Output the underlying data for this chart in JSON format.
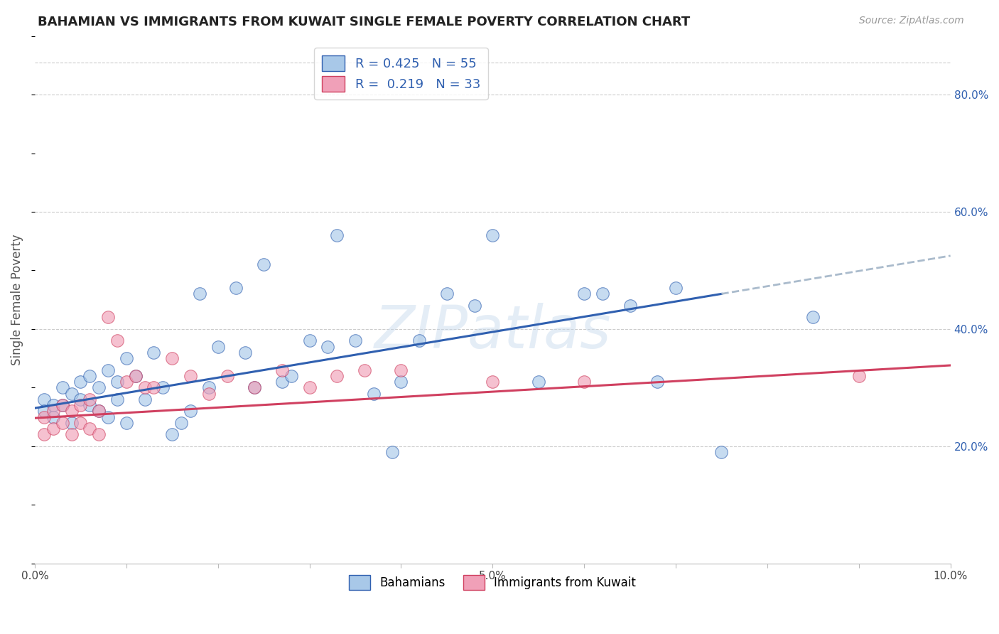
{
  "title": "BAHAMIAN VS IMMIGRANTS FROM KUWAIT SINGLE FEMALE POVERTY CORRELATION CHART",
  "source": "Source: ZipAtlas.com",
  "ylabel": "Single Female Poverty",
  "xlim": [
    0.0,
    0.1
  ],
  "ylim": [
    0.0,
    0.9
  ],
  "xtick_positions": [
    0.0,
    0.01,
    0.02,
    0.03,
    0.04,
    0.05,
    0.06,
    0.07,
    0.08,
    0.09,
    0.1
  ],
  "xtick_labels": [
    "0.0%",
    "",
    "",
    "",
    "",
    "5.0%",
    "",
    "",
    "",
    "",
    "10.0%"
  ],
  "ytick_vals_right": [
    0.2,
    0.4,
    0.6,
    0.8
  ],
  "ytick_labels_right": [
    "20.0%",
    "40.0%",
    "60.0%",
    "80.0%"
  ],
  "color_blue": "#A8C8E8",
  "color_pink": "#F0A0B8",
  "line_blue": "#3060B0",
  "line_pink": "#D04060",
  "line_dashed_color": "#AABBCC",
  "R_blue": 0.425,
  "N_blue": 55,
  "R_pink": 0.219,
  "N_pink": 33,
  "bahamian_x": [
    0.001,
    0.001,
    0.002,
    0.002,
    0.003,
    0.003,
    0.004,
    0.004,
    0.005,
    0.005,
    0.006,
    0.006,
    0.007,
    0.007,
    0.008,
    0.008,
    0.009,
    0.009,
    0.01,
    0.01,
    0.011,
    0.012,
    0.013,
    0.014,
    0.015,
    0.016,
    0.017,
    0.018,
    0.019,
    0.02,
    0.022,
    0.023,
    0.024,
    0.025,
    0.027,
    0.028,
    0.03,
    0.032,
    0.033,
    0.035,
    0.037,
    0.039,
    0.04,
    0.042,
    0.045,
    0.048,
    0.05,
    0.055,
    0.06,
    0.062,
    0.065,
    0.068,
    0.07,
    0.075,
    0.085
  ],
  "bahamian_y": [
    0.28,
    0.26,
    0.27,
    0.25,
    0.3,
    0.27,
    0.29,
    0.24,
    0.31,
    0.28,
    0.32,
    0.27,
    0.3,
    0.26,
    0.33,
    0.25,
    0.31,
    0.28,
    0.35,
    0.24,
    0.32,
    0.28,
    0.36,
    0.3,
    0.22,
    0.24,
    0.26,
    0.46,
    0.3,
    0.37,
    0.47,
    0.36,
    0.3,
    0.51,
    0.31,
    0.32,
    0.38,
    0.37,
    0.56,
    0.38,
    0.29,
    0.19,
    0.31,
    0.38,
    0.46,
    0.44,
    0.56,
    0.31,
    0.46,
    0.46,
    0.44,
    0.31,
    0.47,
    0.19,
    0.42
  ],
  "kuwait_x": [
    0.001,
    0.001,
    0.002,
    0.002,
    0.003,
    0.003,
    0.004,
    0.004,
    0.005,
    0.005,
    0.006,
    0.006,
    0.007,
    0.007,
    0.008,
    0.009,
    0.01,
    0.011,
    0.012,
    0.013,
    0.015,
    0.017,
    0.019,
    0.021,
    0.024,
    0.027,
    0.03,
    0.033,
    0.036,
    0.04,
    0.05,
    0.06,
    0.09
  ],
  "kuwait_y": [
    0.25,
    0.22,
    0.26,
    0.23,
    0.27,
    0.24,
    0.26,
    0.22,
    0.27,
    0.24,
    0.28,
    0.23,
    0.26,
    0.22,
    0.42,
    0.38,
    0.31,
    0.32,
    0.3,
    0.3,
    0.35,
    0.32,
    0.29,
    0.32,
    0.3,
    0.33,
    0.3,
    0.32,
    0.33,
    0.33,
    0.31,
    0.31,
    0.32
  ],
  "blue_line_solid_end": 0.075,
  "blue_line_x0": 0.0,
  "blue_line_y0": 0.265,
  "blue_line_slope": 2.6,
  "pink_line_x0": 0.0,
  "pink_line_y0": 0.248,
  "pink_line_slope": 0.9,
  "watermark_text": "ZIPatlas",
  "background_color": "#FFFFFF",
  "grid_color": "#CCCCCC"
}
